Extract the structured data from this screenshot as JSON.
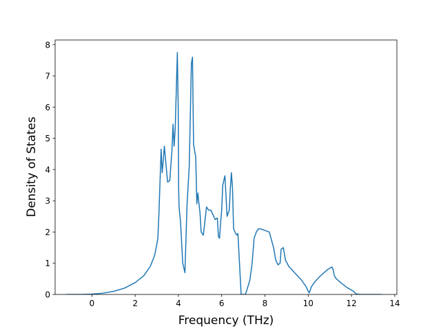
{
  "chart_data": {
    "type": "line",
    "title": "",
    "xlabel": "Frequency (THz)",
    "ylabel": "Density of States",
    "xlim": [
      -1.7,
      14.1
    ],
    "ylim": [
      0,
      8.15
    ],
    "xticks": [
      0,
      2,
      4,
      6,
      8,
      10,
      12,
      14
    ],
    "yticks": [
      0,
      1,
      2,
      3,
      4,
      5,
      6,
      7,
      8
    ],
    "grid": false,
    "legend": "none",
    "line_color": "#1f77b4",
    "series": [
      {
        "x": [
          -1.2,
          -0.5,
          0.0,
          0.5,
          1.0,
          1.5,
          2.0,
          2.4,
          2.7,
          2.9,
          3.0,
          3.05,
          3.1,
          3.2,
          3.25,
          3.3,
          3.35,
          3.42,
          3.5,
          3.6,
          3.7,
          3.75,
          3.8,
          3.85,
          3.9,
          3.95,
          3.99,
          4.01,
          4.03,
          4.1,
          4.2,
          4.3,
          4.4,
          4.5,
          4.6,
          4.65,
          4.7,
          4.75,
          4.8,
          4.85,
          4.9,
          4.95,
          5.0,
          5.05,
          5.15,
          5.3,
          5.4,
          5.5,
          5.6,
          5.7,
          5.8,
          5.85,
          5.9,
          5.95,
          6.0,
          6.05,
          6.15,
          6.25,
          6.35,
          6.4,
          6.45,
          6.5,
          6.55,
          6.65,
          6.7,
          6.75,
          6.8,
          6.9,
          6.95,
          7.0,
          7.05,
          7.1,
          7.3,
          7.4,
          7.5,
          7.6,
          7.7,
          7.8,
          8.0,
          8.2,
          8.4,
          8.5,
          8.6,
          8.7,
          8.75,
          8.85,
          8.95,
          9.1,
          9.3,
          9.5,
          9.7,
          9.9,
          10.0,
          10.05,
          10.15,
          10.3,
          10.5,
          10.7,
          10.9,
          11.1,
          11.15,
          11.2,
          11.25,
          11.3,
          11.5,
          11.8,
          12.1,
          12.2,
          12.4,
          13.4
        ],
        "y": [
          0.0,
          0.0,
          0.01,
          0.04,
          0.1,
          0.2,
          0.38,
          0.6,
          0.9,
          1.25,
          1.6,
          1.8,
          2.6,
          4.65,
          3.9,
          4.3,
          4.75,
          4.2,
          3.6,
          3.65,
          4.6,
          5.45,
          4.75,
          5.3,
          6.5,
          7.75,
          6.0,
          3.4,
          2.8,
          2.3,
          1.0,
          0.7,
          2.9,
          4.1,
          7.4,
          7.6,
          4.8,
          4.6,
          4.4,
          2.9,
          3.25,
          2.9,
          2.6,
          2.0,
          1.9,
          2.8,
          2.7,
          2.7,
          2.55,
          2.4,
          2.45,
          1.85,
          1.8,
          2.3,
          2.7,
          3.5,
          3.8,
          2.5,
          2.7,
          3.4,
          3.9,
          3.4,
          2.1,
          1.95,
          1.9,
          1.95,
          1.3,
          0.0,
          0.0,
          0.0,
          0.0,
          0.0,
          0.45,
          0.95,
          1.8,
          2.0,
          2.1,
          2.1,
          2.05,
          2.0,
          1.5,
          1.1,
          0.95,
          1.0,
          1.45,
          1.5,
          1.1,
          0.9,
          0.75,
          0.6,
          0.45,
          0.25,
          0.1,
          0.05,
          0.25,
          0.4,
          0.55,
          0.68,
          0.8,
          0.88,
          0.8,
          0.62,
          0.55,
          0.5,
          0.38,
          0.22,
          0.1,
          0.02,
          0.0,
          0.0
        ]
      }
    ]
  }
}
